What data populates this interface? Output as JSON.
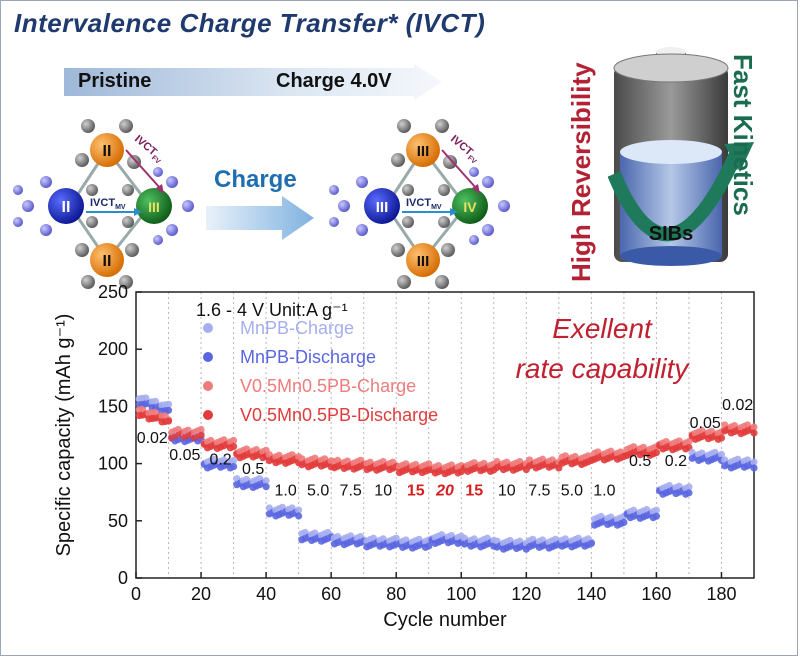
{
  "title": "Intervalence Charge Transfer* (IVCT)",
  "stages": {
    "pristine": "Pristine",
    "charge": "Charge  4.0V"
  },
  "center_arrow_label": "Charge",
  "left_structure": {
    "top": "II",
    "bottom": "II",
    "left": "II",
    "right": "III",
    "ivct_fv": "IVCT",
    "ivct_fv_sub": "FV",
    "ivct_mv": "IVCT",
    "ivct_mv_sub": "MV"
  },
  "right_structure": {
    "top": "III",
    "bottom": "III",
    "left": "III",
    "right": "IV",
    "ivct_fv": "IVCT",
    "ivct_fv_sub": "FV",
    "ivct_mv": "IVCT",
    "ivct_mv_sub": "MV"
  },
  "battery": {
    "label": "SIBs",
    "left_text": "High Reversibility",
    "right_text": "Fast Kinetics"
  },
  "colors": {
    "title": "#1f3a6e",
    "fe": "#f0901f",
    "mn_v": "#1f2fc8",
    "v": "#1a8a2a",
    "mn_charge": "#a7aef0",
    "mn_discharge": "#5a66e0",
    "vmn_charge": "#f07c7c",
    "vmn_discharge": "#e23b3b",
    "rate_text": "#c02030",
    "red_label": "#d42020"
  },
  "chart_data": {
    "type": "scatter",
    "xlabel": "Cycle number",
    "ylabel": "Specific capacity (mAh g⁻¹)",
    "xlim": [
      0,
      190
    ],
    "ylim": [
      0,
      250
    ],
    "xticks": [
      0,
      20,
      40,
      60,
      80,
      100,
      120,
      140,
      160,
      180
    ],
    "yticks": [
      0,
      50,
      100,
      150,
      200,
      250
    ],
    "header": "1.6 - 4 V Unit:A g⁻¹",
    "annotation": [
      "Exellent",
      "rate capability"
    ],
    "legend": [
      {
        "name": "MnPB-Charge",
        "color": "#a7aef0"
      },
      {
        "name": "MnPB-Discharge",
        "color": "#5a66e0"
      },
      {
        "name": "V0.5Mn0.5PB-Charge",
        "color": "#f07c7c"
      },
      {
        "name": "V0.5Mn0.5PB-Discharge",
        "color": "#e23b3b"
      }
    ],
    "rate_segments": [
      {
        "rate": "0.02",
        "from": 1,
        "to": 10,
        "mn": 150,
        "v": 138,
        "label_x": 5,
        "label_y": 118,
        "emph": false
      },
      {
        "rate": "0.05",
        "from": 11,
        "to": 20,
        "mn": 125,
        "v": 126,
        "label_x": 15,
        "label_y": 103,
        "emph": false
      },
      {
        "rate": "0.2",
        "from": 21,
        "to": 30,
        "mn": 102,
        "v": 117,
        "label_x": 26,
        "label_y": 99,
        "emph": false
      },
      {
        "rate": "0.5",
        "from": 31,
        "to": 40,
        "mn": 85,
        "v": 109,
        "label_x": 36,
        "label_y": 91,
        "emph": false
      },
      {
        "rate": "1.0",
        "from": 41,
        "to": 50,
        "mn": 60,
        "v": 104,
        "label_x": 46,
        "label_y": 72,
        "emph": false
      },
      {
        "rate": "5.0",
        "from": 51,
        "to": 60,
        "mn": 38,
        "v": 101,
        "label_x": 56,
        "label_y": 72,
        "emph": false
      },
      {
        "rate": "7.5",
        "from": 61,
        "to": 70,
        "mn": 35,
        "v": 99,
        "label_x": 66,
        "label_y": 72,
        "emph": false
      },
      {
        "rate": "10",
        "from": 71,
        "to": 80,
        "mn": 33,
        "v": 98,
        "label_x": 76,
        "label_y": 72,
        "emph": false
      },
      {
        "rate": "15",
        "from": 81,
        "to": 90,
        "mn": 32,
        "v": 96,
        "label_x": 86,
        "label_y": 72,
        "emph": true
      },
      {
        "rate": "20",
        "from": 91,
        "to": 100,
        "mn": 36,
        "v": 95,
        "label_x": 95,
        "label_y": 72,
        "emph": true
      },
      {
        "rate": "15",
        "from": 101,
        "to": 110,
        "mn": 33,
        "v": 97,
        "label_x": 104,
        "label_y": 72,
        "emph": true
      },
      {
        "rate": "10",
        "from": 111,
        "to": 120,
        "mn": 31,
        "v": 98,
        "label_x": 114,
        "label_y": 72,
        "emph": false
      },
      {
        "rate": "7.5",
        "from": 121,
        "to": 130,
        "mn": 32,
        "v": 100,
        "label_x": 124,
        "label_y": 72,
        "emph": false
      },
      {
        "rate": "5.0",
        "from": 131,
        "to": 140,
        "mn": 33,
        "v": 103,
        "label_x": 134,
        "label_y": 72,
        "emph": false
      },
      {
        "rate": "1.0",
        "from": 141,
        "to": 150,
        "mn": 52,
        "v": 107,
        "label_x": 144,
        "label_y": 72,
        "emph": false
      },
      {
        "rate": "0.5",
        "from": 151,
        "to": 160,
        "mn": 58,
        "v": 111,
        "label_x": 155,
        "label_y": 98,
        "emph": false
      },
      {
        "rate": "0.2",
        "from": 161,
        "to": 170,
        "mn": 79,
        "v": 116,
        "label_x": 166,
        "label_y": 98,
        "emph": false
      },
      {
        "rate": "0.05",
        "from": 171,
        "to": 180,
        "mn": 108,
        "v": 125,
        "label_x": 175,
        "label_y": 131,
        "emph": false
      },
      {
        "rate": "0.02",
        "from": 181,
        "to": 190,
        "mn": 102,
        "v": 130,
        "label_x": 185,
        "label_y": 147,
        "emph": false
      }
    ]
  }
}
